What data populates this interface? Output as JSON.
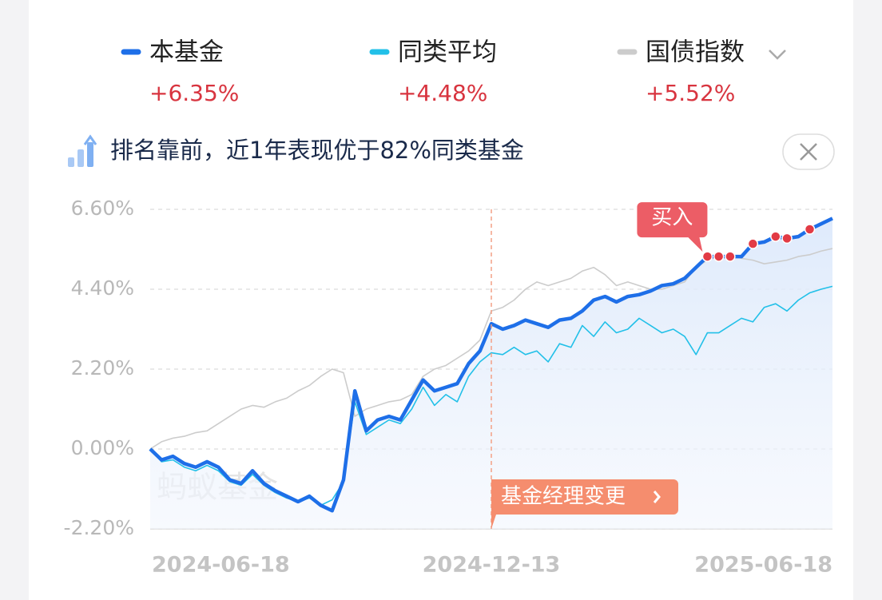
{
  "chart_data": {
    "type": "line",
    "banner": "排名靠前，近1年表现优于82%同类基金",
    "watermark": "蚂蚁基金",
    "categories": [
      "2024-06-18",
      null,
      null,
      null,
      null,
      null,
      null,
      null,
      null,
      null,
      null,
      null,
      null,
      null,
      null,
      null,
      null,
      null,
      null,
      null,
      null,
      null,
      null,
      null,
      null,
      null,
      null,
      null,
      null,
      null,
      "2024-12-13",
      null,
      null,
      null,
      null,
      null,
      null,
      null,
      null,
      null,
      null,
      null,
      null,
      null,
      null,
      null,
      null,
      null,
      null,
      null,
      null,
      null,
      null,
      null,
      null,
      null,
      null,
      null,
      null,
      null,
      "2025-06-18"
    ],
    "series": [
      {
        "name": "本基金",
        "color": "#1e6fe8",
        "return_label": "+6.35%",
        "values": [
          0,
          -0.3,
          -0.2,
          -0.4,
          -0.5,
          -0.35,
          -0.5,
          -0.85,
          -0.95,
          -0.6,
          -0.95,
          -1.15,
          -1.3,
          -1.45,
          -1.3,
          -1.55,
          -1.7,
          -0.85,
          1.6,
          0.5,
          0.8,
          0.9,
          0.8,
          1.35,
          1.9,
          1.6,
          1.7,
          1.8,
          2.35,
          2.7,
          3.45,
          3.3,
          3.4,
          3.55,
          3.45,
          3.35,
          3.55,
          3.6,
          3.8,
          4.1,
          4.2,
          4.05,
          4.2,
          4.25,
          4.35,
          4.5,
          4.55,
          4.7,
          5.0,
          5.3,
          5.3,
          5.3,
          5.3,
          5.65,
          5.7,
          5.85,
          5.8,
          5.85,
          6.05,
          6.2,
          6.35
        ]
      },
      {
        "name": "同类平均",
        "color": "#22c0e8",
        "return_label": "+4.48%",
        "values": [
          0,
          -0.35,
          -0.3,
          -0.5,
          -0.6,
          -0.45,
          -0.6,
          -0.9,
          -1.0,
          -0.7,
          -1.0,
          -1.2,
          -1.35,
          -1.45,
          -1.35,
          -1.55,
          -1.4,
          -0.9,
          1.3,
          0.4,
          0.6,
          0.8,
          0.7,
          1.1,
          1.7,
          1.2,
          1.5,
          1.3,
          2.0,
          2.4,
          2.65,
          2.6,
          2.8,
          2.6,
          2.7,
          2.4,
          2.9,
          2.8,
          3.4,
          3.1,
          3.5,
          3.2,
          3.3,
          3.6,
          3.4,
          3.2,
          3.3,
          3.1,
          2.6,
          3.2,
          3.2,
          3.4,
          3.6,
          3.5,
          3.9,
          4.0,
          3.8,
          4.1,
          4.3,
          4.4,
          4.48
        ]
      },
      {
        "name": "国债指数",
        "color": "#cccccc",
        "return_label": "+5.52%",
        "values": [
          0,
          0.2,
          0.3,
          0.35,
          0.45,
          0.5,
          0.7,
          0.9,
          1.1,
          1.2,
          1.15,
          1.3,
          1.4,
          1.6,
          1.75,
          2.0,
          2.2,
          2.1,
          0.9,
          1.1,
          1.2,
          1.3,
          1.35,
          1.5,
          2.0,
          2.2,
          2.3,
          2.5,
          2.7,
          3.0,
          3.8,
          3.9,
          4.1,
          4.4,
          4.6,
          4.5,
          4.6,
          4.7,
          4.9,
          5.0,
          4.8,
          4.5,
          4.6,
          4.5,
          4.4,
          4.4,
          4.5,
          4.6,
          5.0,
          5.2,
          5.3,
          5.35,
          5.25,
          5.2,
          5.1,
          5.15,
          5.2,
          5.3,
          5.35,
          5.45,
          5.52
        ]
      }
    ],
    "ylim": [
      -2.2,
      6.6
    ],
    "yticks": [
      {
        "value": -2.2,
        "label": "-2.20%"
      },
      {
        "value": 0,
        "label": "0.00%"
      },
      {
        "value": 2.2,
        "label": "2.20%"
      },
      {
        "value": 4.4,
        "label": "4.40%"
      },
      {
        "value": 6.6,
        "label": "6.60%"
      }
    ],
    "grid": true,
    "event": {
      "label": "基金经理变更",
      "index": 30
    },
    "buy_label": "买入",
    "buy_points": [
      49,
      50,
      51,
      53,
      55,
      56,
      58
    ]
  }
}
